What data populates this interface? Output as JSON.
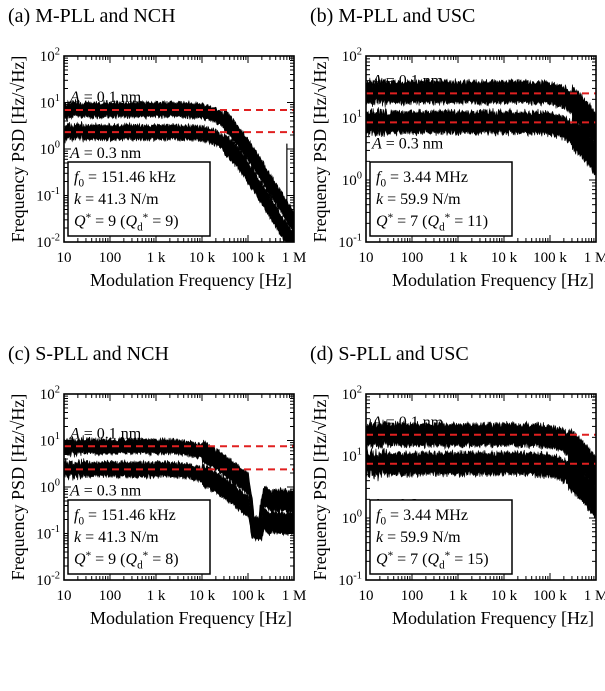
{
  "chart_data": [
    {
      "type": "line",
      "panel_title": "(a) M-PLL and NCH",
      "xlabel": "Modulation Frequency [Hz]",
      "ylabel": "Frequency PSD [Hz/√Hz]",
      "xscale": "log",
      "yscale": "log",
      "xlim": [
        10,
        1000000
      ],
      "ylim": [
        0.01,
        100
      ],
      "xtick_labels": [
        "10",
        "100",
        "1 k",
        "10 k",
        "100 k",
        "1 M"
      ],
      "ytick_labels": [
        "10-2",
        "10-1",
        "100",
        "101",
        "102"
      ],
      "corner_hz": 30000,
      "rolloff_slope": -1.6,
      "series": [
        {
          "name": "A = 0.1 nm",
          "plateau": 7.0,
          "floor": 0.012,
          "thickness": 0.12,
          "dashed_ref": 6.9
        },
        {
          "name": "A = 0.3 nm",
          "plateau": 2.3,
          "floor": 0.01,
          "thickness": 0.12,
          "dashed_ref": 2.3
        }
      ],
      "features": [
        {
          "type": "spikes",
          "at_hz": [
            120000,
            250000,
            400000,
            700000
          ],
          "height": [
            1.0,
            0.15,
            0.1,
            1.3
          ]
        }
      ],
      "param_lines": [
        "f0 = 151.46 kHz",
        "k = 41.3 N/m",
        "Q* = 9 (Qd* = 9)"
      ],
      "params": {
        "f0": "151.46 kHz",
        "k": "41.3 N/m",
        "Q": "9",
        "Qd": "9"
      }
    },
    {
      "type": "line",
      "panel_title": "(b) M-PLL and USC",
      "xlabel": "Modulation Frequency [Hz]",
      "ylabel": "Frequency PSD [Hz/√Hz]",
      "xscale": "log",
      "yscale": "log",
      "xlim": [
        10,
        1000000
      ],
      "ylim": [
        0.1,
        100
      ],
      "xtick_labels": [
        "10",
        "100",
        "1 k",
        "10 k",
        "100 k",
        "1 M"
      ],
      "ytick_labels": [
        "10-1",
        "100",
        "101",
        "102"
      ],
      "corner_hz": 300000,
      "rolloff_slope": -1.1,
      "series": [
        {
          "name": "A = 0.1 nm",
          "plateau": 26.0,
          "floor": 0.1,
          "thickness": 0.14,
          "dashed_ref": 25.0
        },
        {
          "name": "A = 0.3 nm",
          "plateau": 8.5,
          "floor": 0.1,
          "thickness": 0.14,
          "dashed_ref": 8.5
        }
      ],
      "features": [],
      "param_lines": [
        "f0 = 3.44 MHz",
        "k = 59.9 N/m",
        "Q* = 7 (Qd* = 11)"
      ],
      "params": {
        "f0": "3.44 MHz",
        "k": "59.9 N/m",
        "Q": "7",
        "Qd": "11"
      }
    },
    {
      "type": "line",
      "panel_title": "(c) S-PLL and NCH",
      "xlabel": "Modulation Frequency [Hz]",
      "ylabel": "Frequency PSD [Hz/√Hz]",
      "xscale": "log",
      "yscale": "log",
      "xlim": [
        10,
        1000000
      ],
      "ylim": [
        0.01,
        100
      ],
      "xtick_labels": [
        "10",
        "100",
        "1 k",
        "10 k",
        "100 k",
        "1 M"
      ],
      "ytick_labels": [
        "10-2",
        "10-1",
        "100",
        "101",
        "102"
      ],
      "corner_hz": 10000,
      "rolloff_slope": -0.8,
      "series": [
        {
          "name": "A = 0.1 nm",
          "plateau": 7.5,
          "floor": 0.45,
          "thickness": 0.12,
          "dashed_ref": 7.5
        },
        {
          "name": "A = 0.3 nm",
          "plateau": 2.4,
          "floor": 0.15,
          "thickness": 0.12,
          "dashed_ref": 2.4
        }
      ],
      "features": [
        {
          "type": "notch",
          "at_hz": 151460,
          "depth": 0.012
        }
      ],
      "param_lines": [
        "f0 = 151.46 kHz",
        "k = 41.3 N/m",
        "Q* = 9 (Qd* = 8)"
      ],
      "params": {
        "f0": "151.46 kHz",
        "k": "41.3 N/m",
        "Q": "9",
        "Qd": "8"
      }
    },
    {
      "type": "line",
      "panel_title": "(d) S-PLL and USC",
      "xlabel": "Modulation Frequency [Hz]",
      "ylabel": "Frequency PSD [Hz/√Hz]",
      "xscale": "log",
      "yscale": "log",
      "xlim": [
        10,
        1000000
      ],
      "ylim": [
        0.1,
        100
      ],
      "xtick_labels": [
        "10",
        "100",
        "1 k",
        "10 k",
        "100 k",
        "1 M"
      ],
      "ytick_labels": [
        "10-1",
        "100",
        "101",
        "102"
      ],
      "corner_hz": 250000,
      "rolloff_slope": -1.0,
      "series": [
        {
          "name": "A = 0.1 nm",
          "plateau": 22.0,
          "floor": 2.5,
          "thickness": 0.14,
          "dashed_ref": 22.0
        },
        {
          "name": "A = 0.3 nm",
          "plateau": 7.5,
          "floor": 0.6,
          "thickness": 0.14,
          "dashed_ref": 7.5
        }
      ],
      "features": [],
      "param_lines": [
        "f0 = 3.44 MHz",
        "k = 59.9 N/m",
        "Q* = 7 (Qd* = 15)"
      ],
      "params": {
        "f0": "3.44 MHz",
        "k": "59.9 N/m",
        "Q": "7",
        "Qd": "15"
      }
    }
  ]
}
